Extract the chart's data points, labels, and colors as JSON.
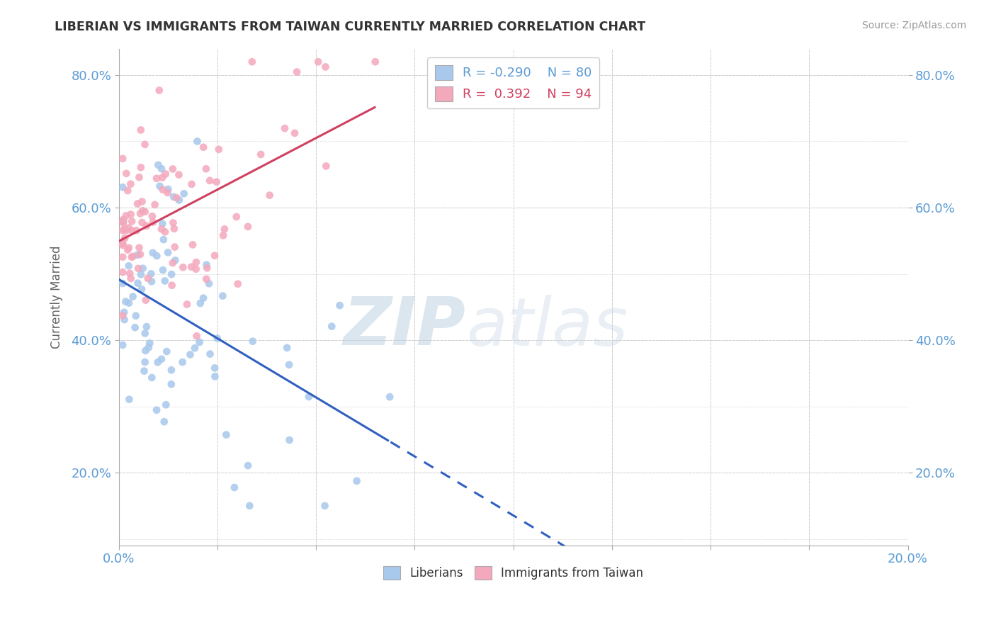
{
  "title": "LIBERIAN VS IMMIGRANTS FROM TAIWAN CURRENTLY MARRIED CORRELATION CHART",
  "source": "Source: ZipAtlas.com",
  "ylabel": "Currently Married",
  "R1": -0.29,
  "N1": 80,
  "R2": 0.392,
  "N2": 94,
  "color1": "#A8C8EC",
  "color2": "#F4A8BC",
  "line_color1": "#3060C0",
  "line_color2": "#D04060",
  "xlim": [
    0.0,
    0.2
  ],
  "ylim": [
    0.09,
    0.84
  ],
  "yticks": [
    0.2,
    0.4,
    0.6,
    0.8
  ],
  "ytick_labels": [
    "20.0%",
    "40.0%",
    "60.0%",
    "80.0%"
  ],
  "legend_label1": "Liberians",
  "legend_label2": "Immigrants from Taiwan",
  "watermark_zip": "ZIP",
  "watermark_atlas": "atlas",
  "background_color": "#FFFFFF",
  "grid_color": "#CCCCCC"
}
